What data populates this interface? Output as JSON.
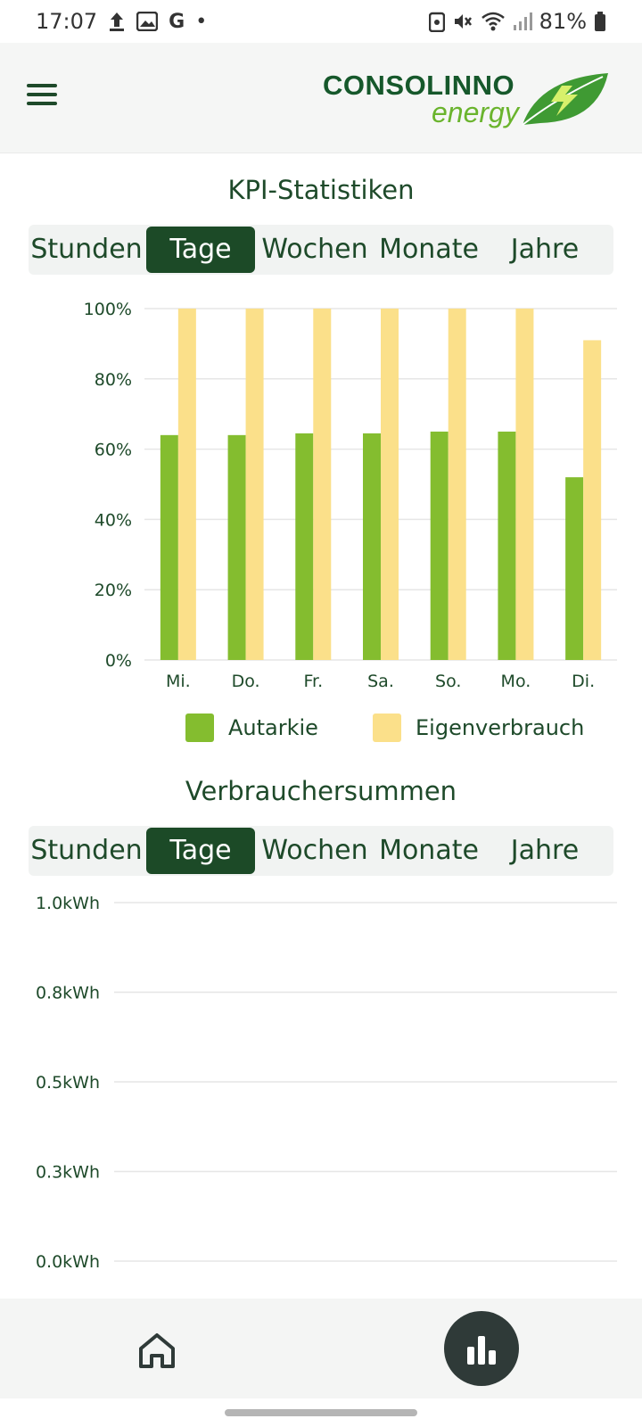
{
  "status_bar": {
    "time": "17:07",
    "battery": "81%",
    "left_icons": [
      "upload-icon",
      "image-icon",
      "google-icon",
      "dot-icon"
    ],
    "right_icons": [
      "nfc-icon",
      "mute-icon",
      "wifi-icon",
      "signal-icon",
      "battery-icon"
    ],
    "google_glyph": "G",
    "dot_glyph": "•"
  },
  "header": {
    "logo_top": "CONSOLINNO",
    "logo_bottom": "energy",
    "menu_icon": "hamburger-menu-icon"
  },
  "kpi": {
    "title": "KPI-Statistiken",
    "tabs": [
      "Stunden",
      "Tage",
      "Wochen",
      "Monate",
      "Jahre"
    ],
    "active_tab": "Tage"
  },
  "consumers": {
    "title": "Verbrauchersummen",
    "tabs": [
      "Stunden",
      "Tage",
      "Wochen",
      "Monate",
      "Jahre"
    ],
    "active_tab": "Tage"
  },
  "legend": {
    "autarkie": "Autarkie",
    "eigenverbrauch": "Eigenverbrauch"
  },
  "colors": {
    "autarkie": "#84bd2f",
    "eigenverbrauch": "#fbe08a",
    "accent": "#1c4a27",
    "text": "#1e4a2a"
  },
  "bottom_nav": {
    "home_icon": "home-icon",
    "stats_icon": "bar-chart-icon"
  },
  "chart_data": [
    {
      "type": "bar",
      "categories": [
        "Mi.",
        "Do.",
        "Fr.",
        "Sa.",
        "So.",
        "Mo.",
        "Di."
      ],
      "series": [
        {
          "name": "Autarkie",
          "values": [
            64,
            64,
            64.5,
            64.5,
            65,
            65,
            52
          ]
        },
        {
          "name": "Eigenverbrauch",
          "values": [
            100,
            100,
            100,
            100,
            100,
            100,
            91
          ]
        }
      ],
      "ylim": [
        0,
        100
      ],
      "yticks": [
        "0%",
        "20%",
        "40%",
        "60%",
        "80%",
        "100%"
      ],
      "grid": true,
      "legend": "bottom"
    },
    {
      "type": "bar",
      "categories": [],
      "series": [],
      "ylim": [
        0,
        1.0
      ],
      "yticks": [
        "0.0kWh",
        "0.3kWh",
        "0.5kWh",
        "0.8kWh",
        "1.0kWh"
      ],
      "grid": true
    }
  ]
}
